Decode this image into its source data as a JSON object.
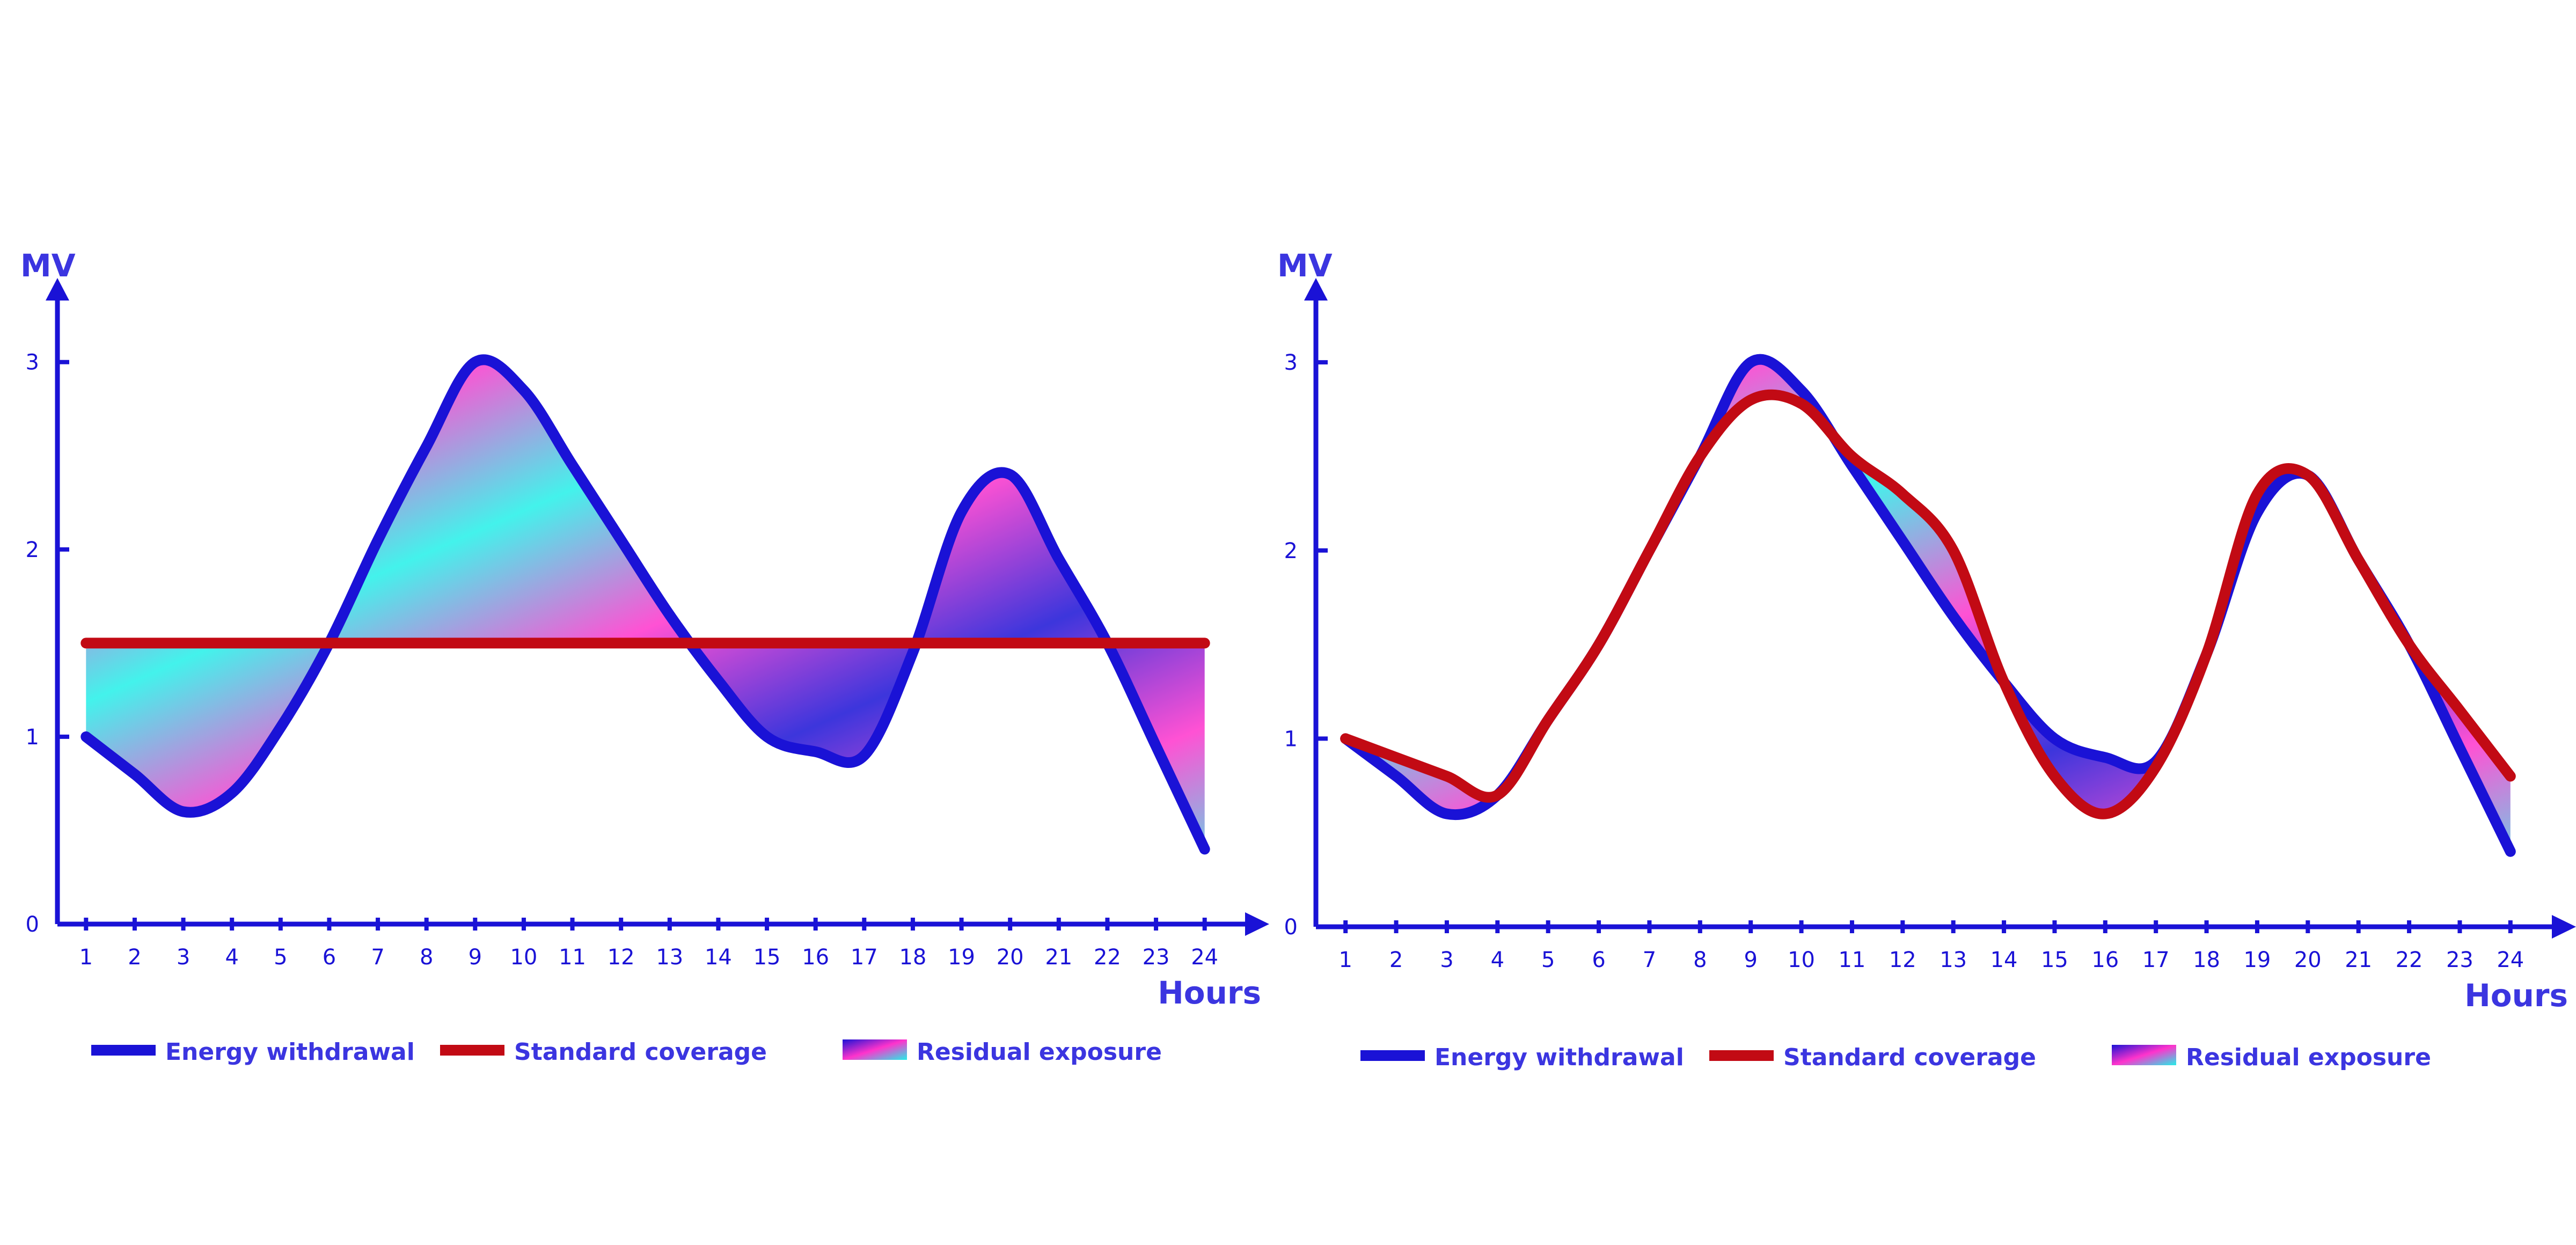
{
  "colors": {
    "withdrawal": "#1a12d6",
    "coverage": "#c20a14",
    "exposure_gradient": [
      "#1a12d6",
      "#ff33cc",
      "#22f0e8"
    ],
    "axis": "#1a12d6",
    "axis_title": "#3b35e0"
  },
  "chart_data": [
    {
      "type": "line",
      "xlabel": "Hours",
      "ylabel": "MV",
      "x": [
        1,
        2,
        3,
        4,
        5,
        6,
        7,
        8,
        9,
        10,
        11,
        12,
        13,
        14,
        15,
        16,
        17,
        18,
        19,
        20,
        21,
        22,
        23,
        24
      ],
      "xlim": [
        0.5,
        24.5
      ],
      "ylim": [
        0,
        3.3
      ],
      "yticks": [
        0,
        1,
        2,
        3
      ],
      "series": [
        {
          "name": "Energy withdrawal",
          "values": [
            1.0,
            0.8,
            0.6,
            0.7,
            1.05,
            1.5,
            2.05,
            2.55,
            3.0,
            2.85,
            2.45,
            2.05,
            1.65,
            1.3,
            1.0,
            0.92,
            0.9,
            1.45,
            2.2,
            2.4,
            1.95,
            1.5,
            0.95,
            0.4
          ]
        },
        {
          "name": "Standard coverage",
          "values": [
            1.5,
            1.5,
            1.5,
            1.5,
            1.5,
            1.5,
            1.5,
            1.5,
            1.5,
            1.5,
            1.5,
            1.5,
            1.5,
            1.5,
            1.5,
            1.5,
            1.5,
            1.5,
            1.5,
            1.5,
            1.5,
            1.5,
            1.5,
            1.5
          ]
        }
      ],
      "fill_between_label": "Residual exposure",
      "legend": [
        {
          "label": "Energy withdrawal",
          "kind": "line",
          "color": "#1a12d6"
        },
        {
          "label": "Standard coverage",
          "kind": "line",
          "color": "#c20a14"
        },
        {
          "label": "Residual exposure",
          "kind": "gradient"
        }
      ]
    },
    {
      "type": "line",
      "xlabel": "Hours",
      "ylabel": "MV",
      "x": [
        1,
        2,
        3,
        4,
        5,
        6,
        7,
        8,
        9,
        10,
        11,
        12,
        13,
        14,
        15,
        16,
        17,
        18,
        19,
        20,
        21,
        22,
        23,
        24
      ],
      "xlim": [
        0.5,
        24.5
      ],
      "ylim": [
        0,
        3.3
      ],
      "yticks": [
        0,
        1,
        2,
        3
      ],
      "series": [
        {
          "name": "Energy withdrawal",
          "values": [
            1.0,
            0.8,
            0.6,
            0.7,
            1.1,
            1.5,
            2.0,
            2.5,
            3.0,
            2.85,
            2.45,
            2.05,
            1.65,
            1.3,
            1.0,
            0.9,
            0.88,
            1.45,
            2.2,
            2.4,
            1.95,
            1.5,
            0.95,
            0.4
          ]
        },
        {
          "name": "Standard coverage",
          "values": [
            1.0,
            0.9,
            0.8,
            0.7,
            1.1,
            1.5,
            2.0,
            2.5,
            2.8,
            2.78,
            2.5,
            2.3,
            2.0,
            1.3,
            0.8,
            0.6,
            0.85,
            1.45,
            2.3,
            2.4,
            1.95,
            1.5,
            1.15,
            0.8
          ]
        }
      ],
      "fill_between_label": "Residual exposure",
      "legend": [
        {
          "label": "Energy withdrawal",
          "kind": "line",
          "color": "#1a12d6"
        },
        {
          "label": "Standard coverage",
          "kind": "line",
          "color": "#c20a14"
        },
        {
          "label": "Residual exposure",
          "kind": "gradient"
        }
      ]
    }
  ]
}
